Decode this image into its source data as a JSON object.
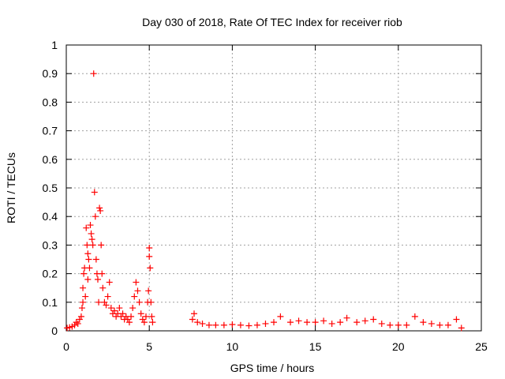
{
  "chart_data": {
    "type": "scatter",
    "title": "Day 030 of 2018, Rate Of TEC Index for receiver riob",
    "xlabel": "GPS time / hours",
    "ylabel": "ROTI / TECUs",
    "xlim": [
      0,
      25
    ],
    "ylim": [
      0,
      1
    ],
    "xticks": [
      0,
      5,
      10,
      15,
      20,
      25
    ],
    "yticks": [
      0,
      0.1,
      0.2,
      0.3,
      0.4,
      0.5,
      0.6,
      0.7,
      0.8,
      0.9,
      1
    ],
    "xtick_labels": [
      "0",
      "5",
      "10",
      "15",
      "20",
      "25"
    ],
    "ytick_labels": [
      "0",
      "0.1",
      "0.2",
      "0.3",
      "0.4",
      "0.5",
      "0.6",
      "0.7",
      "0.8",
      "0.9",
      "1"
    ],
    "grid": true,
    "marker": "plus",
    "color": "#ff0000",
    "series": [
      {
        "points": [
          [
            0.05,
            0.01
          ],
          [
            0.2,
            0.012
          ],
          [
            0.35,
            0.015
          ],
          [
            0.5,
            0.02
          ],
          [
            0.6,
            0.03
          ],
          [
            0.7,
            0.025
          ],
          [
            0.8,
            0.04
          ],
          [
            0.9,
            0.05
          ],
          [
            0.95,
            0.08
          ],
          [
            1.0,
            0.1
          ],
          [
            1.0,
            0.15
          ],
          [
            1.05,
            0.2
          ],
          [
            1.1,
            0.22
          ],
          [
            1.15,
            0.12
          ],
          [
            1.2,
            0.36
          ],
          [
            1.25,
            0.3
          ],
          [
            1.3,
            0.27
          ],
          [
            1.3,
            0.18
          ],
          [
            1.35,
            0.25
          ],
          [
            1.4,
            0.22
          ],
          [
            1.45,
            0.37
          ],
          [
            1.5,
            0.34
          ],
          [
            1.55,
            0.32
          ],
          [
            1.6,
            0.3
          ],
          [
            1.65,
            0.9
          ],
          [
            1.7,
            0.485
          ],
          [
            1.75,
            0.4
          ],
          [
            1.8,
            0.25
          ],
          [
            1.85,
            0.2
          ],
          [
            1.9,
            0.18
          ],
          [
            1.95,
            0.1
          ],
          [
            2.0,
            0.43
          ],
          [
            2.05,
            0.42
          ],
          [
            2.1,
            0.3
          ],
          [
            2.15,
            0.2
          ],
          [
            2.2,
            0.15
          ],
          [
            2.3,
            0.1
          ],
          [
            2.4,
            0.09
          ],
          [
            2.5,
            0.12
          ],
          [
            2.6,
            0.17
          ],
          [
            2.7,
            0.08
          ],
          [
            2.8,
            0.06
          ],
          [
            2.9,
            0.07
          ],
          [
            3.0,
            0.05
          ],
          [
            3.1,
            0.06
          ],
          [
            3.2,
            0.08
          ],
          [
            3.3,
            0.05
          ],
          [
            3.4,
            0.06
          ],
          [
            3.5,
            0.04
          ],
          [
            3.6,
            0.05
          ],
          [
            3.7,
            0.04
          ],
          [
            3.8,
            0.03
          ],
          [
            3.9,
            0.05
          ],
          [
            4.0,
            0.08
          ],
          [
            4.1,
            0.12
          ],
          [
            4.2,
            0.17
          ],
          [
            4.3,
            0.14
          ],
          [
            4.4,
            0.1
          ],
          [
            4.5,
            0.06
          ],
          [
            4.6,
            0.04
          ],
          [
            4.7,
            0.03
          ],
          [
            4.8,
            0.05
          ],
          [
            4.9,
            0.1
          ],
          [
            4.95,
            0.14
          ],
          [
            5.0,
            0.29
          ],
          [
            5.0,
            0.26
          ],
          [
            5.05,
            0.22
          ],
          [
            5.1,
            0.1
          ],
          [
            5.15,
            0.05
          ],
          [
            5.2,
            0.03
          ],
          [
            7.6,
            0.04
          ],
          [
            7.7,
            0.06
          ],
          [
            7.9,
            0.03
          ],
          [
            8.2,
            0.025
          ],
          [
            8.6,
            0.02
          ],
          [
            9.0,
            0.02
          ],
          [
            9.5,
            0.02
          ],
          [
            10.0,
            0.022
          ],
          [
            10.5,
            0.02
          ],
          [
            11.0,
            0.018
          ],
          [
            11.5,
            0.02
          ],
          [
            12.0,
            0.025
          ],
          [
            12.5,
            0.03
          ],
          [
            12.9,
            0.05
          ],
          [
            13.5,
            0.03
          ],
          [
            14.0,
            0.035
          ],
          [
            14.5,
            0.03
          ],
          [
            15.0,
            0.03
          ],
          [
            15.5,
            0.035
          ],
          [
            16.0,
            0.025
          ],
          [
            16.5,
            0.03
          ],
          [
            16.9,
            0.045
          ],
          [
            17.5,
            0.03
          ],
          [
            18.0,
            0.035
          ],
          [
            18.5,
            0.04
          ],
          [
            19.0,
            0.025
          ],
          [
            19.5,
            0.02
          ],
          [
            20.0,
            0.02
          ],
          [
            20.5,
            0.02
          ],
          [
            21.0,
            0.05
          ],
          [
            21.5,
            0.03
          ],
          [
            22.0,
            0.025
          ],
          [
            22.5,
            0.02
          ],
          [
            23.0,
            0.02
          ],
          [
            23.5,
            0.04
          ],
          [
            23.8,
            0.01
          ]
        ]
      }
    ]
  }
}
